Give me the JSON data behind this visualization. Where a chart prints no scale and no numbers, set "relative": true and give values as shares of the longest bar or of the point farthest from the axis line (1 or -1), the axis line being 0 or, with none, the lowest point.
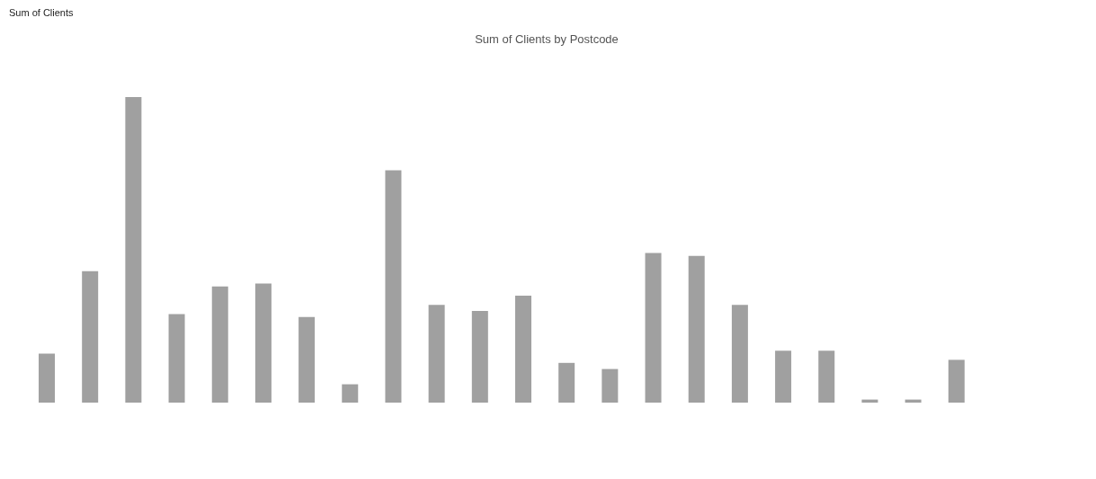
{
  "chart_data": {
    "type": "bar",
    "title": "Sum of Clients by Postcode",
    "annotations": [
      "Sum of Clients"
    ],
    "relative": true,
    "categories": [
      null,
      null,
      null,
      null,
      null,
      null,
      null,
      null,
      null,
      null,
      null,
      null,
      null,
      null,
      null,
      null,
      null,
      null,
      null,
      null,
      null,
      null
    ],
    "values": [
      0.16,
      0.43,
      1,
      0.29,
      0.38,
      0.39,
      0.28,
      0.06,
      0.76,
      0.32,
      0.3,
      0.35,
      0.13,
      0.11,
      0.49,
      0.48,
      0.32,
      0.17,
      0.17,
      0.01,
      0.01,
      0.14
    ],
    "color": "#a0a0a0",
    "grid": false,
    "legend": false
  }
}
